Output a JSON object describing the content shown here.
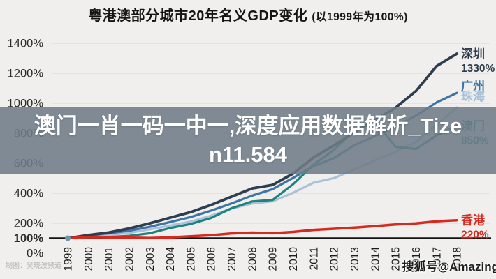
{
  "title": {
    "main": "粤港澳部分城市20年名义GDP变化",
    "paren": "(以1999年为100%)"
  },
  "overlay": {
    "full_text": "澳门一肖一码一中一,深度应用数据解析_Tizen11.584",
    "lines": [
      "澳门一肖一码一中一,深度应用数据解析_Tize",
      "n11.584"
    ]
  },
  "credit": "制图：吴晓波频道",
  "watermark": "搜狐号@Amazing",
  "colors": {
    "background": "#f0efed",
    "grid": "#dedcd9",
    "axis_text": "#222222",
    "baseline": "#141414",
    "start_dot": "#6f97a3",
    "overlay_band": "#6e7c88",
    "shenzhen": "#2f3e4e",
    "guangzhou": "#3c74a6",
    "zhuhai": "#a9c2d9",
    "macau": "#1e827d",
    "hongkong": "#d8291f"
  },
  "chart_data": {
    "type": "line",
    "title": "粤港澳部分城市20年名义GDP变化 (以1999年为100%)",
    "x": [
      "1999",
      "2000",
      "2001",
      "2002",
      "2003",
      "2004",
      "2005",
      "2006",
      "2007",
      "2008",
      "2009",
      "2010",
      "2011",
      "2012",
      "2013",
      "2014",
      "2015",
      "2016",
      "2017",
      "2018"
    ],
    "xlabel": "",
    "ylabel": "",
    "ylim": [
      0,
      1450
    ],
    "yticks": [
      "1400%",
      "1200%",
      "1000%",
      "800%",
      "600%",
      "400%",
      "200%",
      "100%",
      "0%"
    ],
    "baseline_value": 100,
    "grid": true,
    "legend_position": "line-end-right",
    "draw_order": [
      "zhuhai",
      "guangzhou",
      "macau",
      "shenzhen",
      "hongkong"
    ],
    "series": [
      {
        "id": "shenzhen",
        "name": "深圳",
        "end_label": "1330%",
        "color": "#2f3e4e",
        "label_dy": 0,
        "values": [
          100,
          121,
          138,
          165,
          199,
          237,
          274,
          322,
          377,
          432,
          455,
          531,
          638,
          719,
          808,
          887,
          970,
          1081,
          1247,
          1330
        ]
      },
      {
        "id": "guangzhou",
        "name": "广州",
        "end_label": "",
        "color": "#3c74a6",
        "label_dy": -10,
        "values": [
          100,
          117,
          133,
          150,
          176,
          208,
          241,
          284,
          332,
          384,
          427,
          502,
          581,
          634,
          721,
          781,
          846,
          917,
          1005,
          1069
        ]
      },
      {
        "id": "zhuhai",
        "name": "珠海",
        "end_label": "",
        "color": "#a9c2d9",
        "label_dy": -16,
        "values": [
          100,
          110,
          123,
          135,
          159,
          184,
          211,
          250,
          298,
          331,
          346,
          403,
          470,
          501,
          559,
          619,
          675,
          742,
          855,
          972
        ]
      },
      {
        "id": "macau",
        "name": "澳门",
        "end_label": "850%",
        "color": "#1e827d",
        "label_dy": 0,
        "values": [
          100,
          106,
          108,
          116,
          133,
          168,
          195,
          235,
          300,
          345,
          355,
          460,
          590,
          690,
          820,
          880,
          710,
          695,
          785,
          850
        ]
      },
      {
        "id": "hongkong",
        "name": "香港",
        "end_label": "220%",
        "color": "#d8291f",
        "label_dy": 0,
        "values": [
          100,
          107,
          106,
          104,
          101,
          105,
          113,
          120,
          132,
          137,
          133,
          142,
          155,
          163,
          171,
          181,
          192,
          199,
          213,
          220
        ]
      }
    ]
  }
}
